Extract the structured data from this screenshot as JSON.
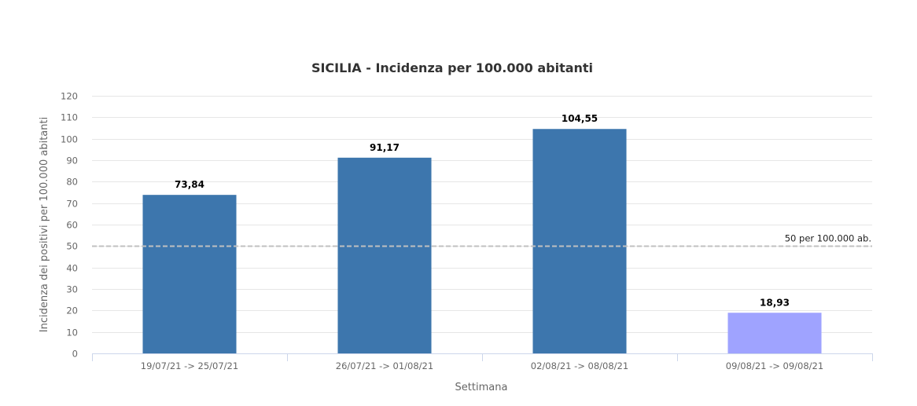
{
  "chart_data": {
    "type": "bar",
    "title": "SICILIA - Incidenza per 100.000 abitanti",
    "xlabel": "Settimana",
    "ylabel": "Incidenza dei positivi per 100.000 abitanti",
    "categories": [
      "19/07/21 -> 25/07/21",
      "26/07/21 -> 01/08/21",
      "02/08/21 -> 08/08/21",
      "09/08/21 -> 09/08/21"
    ],
    "values": [
      73.84,
      91.17,
      104.55,
      18.93
    ],
    "data_labels": [
      "73,84",
      "91,17",
      "104,55",
      "18,93"
    ],
    "bar_colors": [
      "#3d76ad",
      "#3d76ad",
      "#3d76ad",
      "#9fa3ff"
    ],
    "ylim": [
      0,
      120
    ],
    "yticks": [
      0,
      10,
      20,
      30,
      40,
      50,
      60,
      70,
      80,
      90,
      100,
      110,
      120
    ],
    "grid": true,
    "reference_line": {
      "value": 50,
      "label": "50 per 100.000 ab.",
      "color": "#c0c0c0",
      "style": "dashed"
    }
  }
}
